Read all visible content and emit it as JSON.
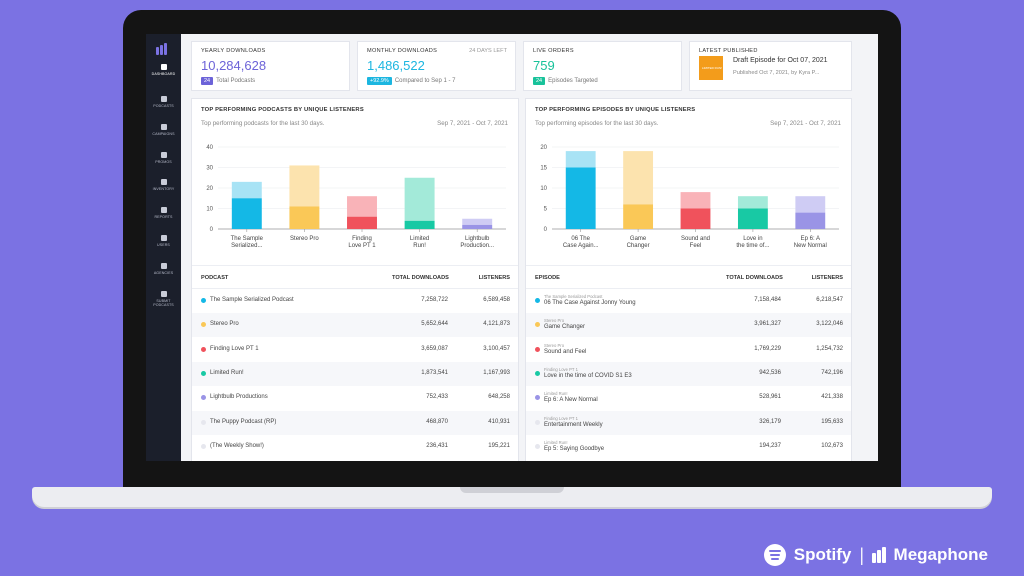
{
  "sidebar": {
    "items": [
      {
        "label": "Dashboard"
      },
      {
        "label": "Podcasts"
      },
      {
        "label": "Campaigns"
      },
      {
        "label": "Promos"
      },
      {
        "label": "Inventory"
      },
      {
        "label": "Reports"
      },
      {
        "label": "Users"
      },
      {
        "label": "Agencies"
      },
      {
        "label": "Submit"
      },
      {
        "label": "Podcasts"
      }
    ]
  },
  "kpis": {
    "yearly": {
      "label": "Yearly Downloads",
      "value": "10,284,628",
      "badge": "24",
      "sub": "Total Podcasts"
    },
    "monthly": {
      "label": "Monthly Downloads",
      "right": "24 Days Left",
      "value": "1,486,522",
      "badge": "+92.9%",
      "sub": "Compared to Sep 1 - 7"
    },
    "orders": {
      "label": "Live Orders",
      "value": "759",
      "badge": "24",
      "sub": "Episodes Targeted"
    },
    "latest": {
      "label": "Latest Published",
      "thumb_text": "LIMITED RUN!",
      "title": "Draft Episode for Oct 07, 2021",
      "sub": "Published Oct 7, 2021, by Kyra P..."
    }
  },
  "panels": {
    "podcasts": {
      "title": "Top Performing Podcasts by Unique Listeners",
      "sub": "Top performing podcasts for the last 30 days.",
      "range": "Sep 7, 2021 - Oct 7, 2021"
    },
    "episodes": {
      "title": "Top Performing Episodes by Unique Listeners",
      "sub": "Top performing episodes for the last 30 days.",
      "range": "Sep 7, 2021 - Oct 7, 2021"
    }
  },
  "chart_data": [
    {
      "type": "bar",
      "ylim": [
        0,
        40
      ],
      "yticks": [
        "0",
        "10",
        "20",
        "30",
        "40"
      ],
      "categories": [
        [
          "The Sample",
          "Serialized..."
        ],
        [
          "Stereo Pro"
        ],
        [
          "Finding",
          "Love PT 1"
        ],
        [
          "Limited",
          "Run!"
        ],
        [
          "Lightbulb",
          "Production..."
        ]
      ],
      "series": [
        {
          "values": [
            15,
            11,
            6,
            4,
            2
          ]
        },
        {
          "values": [
            23,
            31,
            16,
            25,
            5
          ]
        }
      ],
      "colors": [
        "#14B8E6",
        "#FAC857",
        "#F0525C",
        "#18C9A4",
        "#9A94E6"
      ],
      "light_colors": [
        "#A8E3F5",
        "#FCE3AE",
        "#F9B3B8",
        "#A3EAD9",
        "#CFCCF4"
      ]
    },
    {
      "type": "bar",
      "ylim": [
        0,
        20
      ],
      "yticks": [
        "0",
        "5",
        "10",
        "15",
        "20"
      ],
      "categories": [
        [
          "06 The",
          "Case Again..."
        ],
        [
          "Game",
          "Changer"
        ],
        [
          "Sound and",
          "Feel"
        ],
        [
          "Love in",
          "the time of..."
        ],
        [
          "Ep 6: A",
          "New Normal"
        ]
      ],
      "series": [
        {
          "values": [
            15,
            6,
            5,
            5,
            4
          ]
        },
        {
          "values": [
            19,
            19,
            9,
            8,
            8
          ]
        }
      ],
      "colors": [
        "#14B8E6",
        "#FAC857",
        "#F0525C",
        "#18C9A4",
        "#9A94E6"
      ],
      "light_colors": [
        "#A8E3F5",
        "#FCE3AE",
        "#F9B3B8",
        "#A3EAD9",
        "#CFCCF4"
      ]
    }
  ],
  "podcast_table": {
    "headers": [
      "Podcast",
      "Total Downloads",
      "Listeners"
    ],
    "rows": [
      {
        "name": "The Sample Serialized Podcast",
        "downloads": "7,258,722",
        "listeners": "6,589,458",
        "color": "#14B8E6"
      },
      {
        "name": "Stereo Pro",
        "downloads": "5,652,644",
        "listeners": "4,121,873",
        "color": "#FAC857"
      },
      {
        "name": "Finding Love PT 1",
        "downloads": "3,659,087",
        "listeners": "3,100,457",
        "color": "#F0525C"
      },
      {
        "name": "Limited Run!",
        "downloads": "1,873,541",
        "listeners": "1,167,993",
        "color": "#18C9A4"
      },
      {
        "name": "Lightbulb Productions",
        "downloads": "752,433",
        "listeners": "648,258",
        "color": "#9A94E6"
      },
      {
        "name": "The Puppy Podcast (RP)",
        "downloads": "468,870",
        "listeners": "410,931",
        "color": "#E6E7EE"
      },
      {
        "name": "(The Weekly Show!)",
        "downloads": "236,431",
        "listeners": "195,221",
        "color": "#E6E7EE"
      }
    ]
  },
  "episode_table": {
    "headers": [
      "Episode",
      "Total Downloads",
      "Listeners"
    ],
    "rows": [
      {
        "podcast": "The Sample Serialized Podcast",
        "name": "06 The Case Against Jonny Young",
        "downloads": "7,158,484",
        "listeners": "6,218,547",
        "color": "#14B8E6"
      },
      {
        "podcast": "Stereo Pro",
        "name": "Game Changer",
        "downloads": "3,961,327",
        "listeners": "3,122,046",
        "color": "#FAC857"
      },
      {
        "podcast": "Stereo Pro",
        "name": "Sound and Feel",
        "downloads": "1,769,229",
        "listeners": "1,254,732",
        "color": "#F0525C"
      },
      {
        "podcast": "Finding Love PT 1",
        "name": "Love in the time of COVID S1 E3",
        "downloads": "942,536",
        "listeners": "742,196",
        "color": "#18C9A4"
      },
      {
        "podcast": "Limited Run!",
        "name": "Ep 6: A New Normal",
        "downloads": "528,961",
        "listeners": "421,338",
        "color": "#9A94E6"
      },
      {
        "podcast": "Finding Love PT 1",
        "name": "Entertainment Weekly",
        "downloads": "326,179",
        "listeners": "195,633",
        "color": "#E6E7EE"
      },
      {
        "podcast": "Limited Run!",
        "name": "Ep 5: Saying Goodbye",
        "downloads": "194,237",
        "listeners": "102,673",
        "color": "#E6E7EE"
      }
    ]
  },
  "footer": {
    "spotify": "Spotify",
    "separator": "|",
    "megaphone": "Megaphone"
  },
  "colors": {
    "background": "#7B72E3",
    "accent": "#6C63D8",
    "cyan": "#1CB6E0",
    "teal": "#18C29A"
  }
}
